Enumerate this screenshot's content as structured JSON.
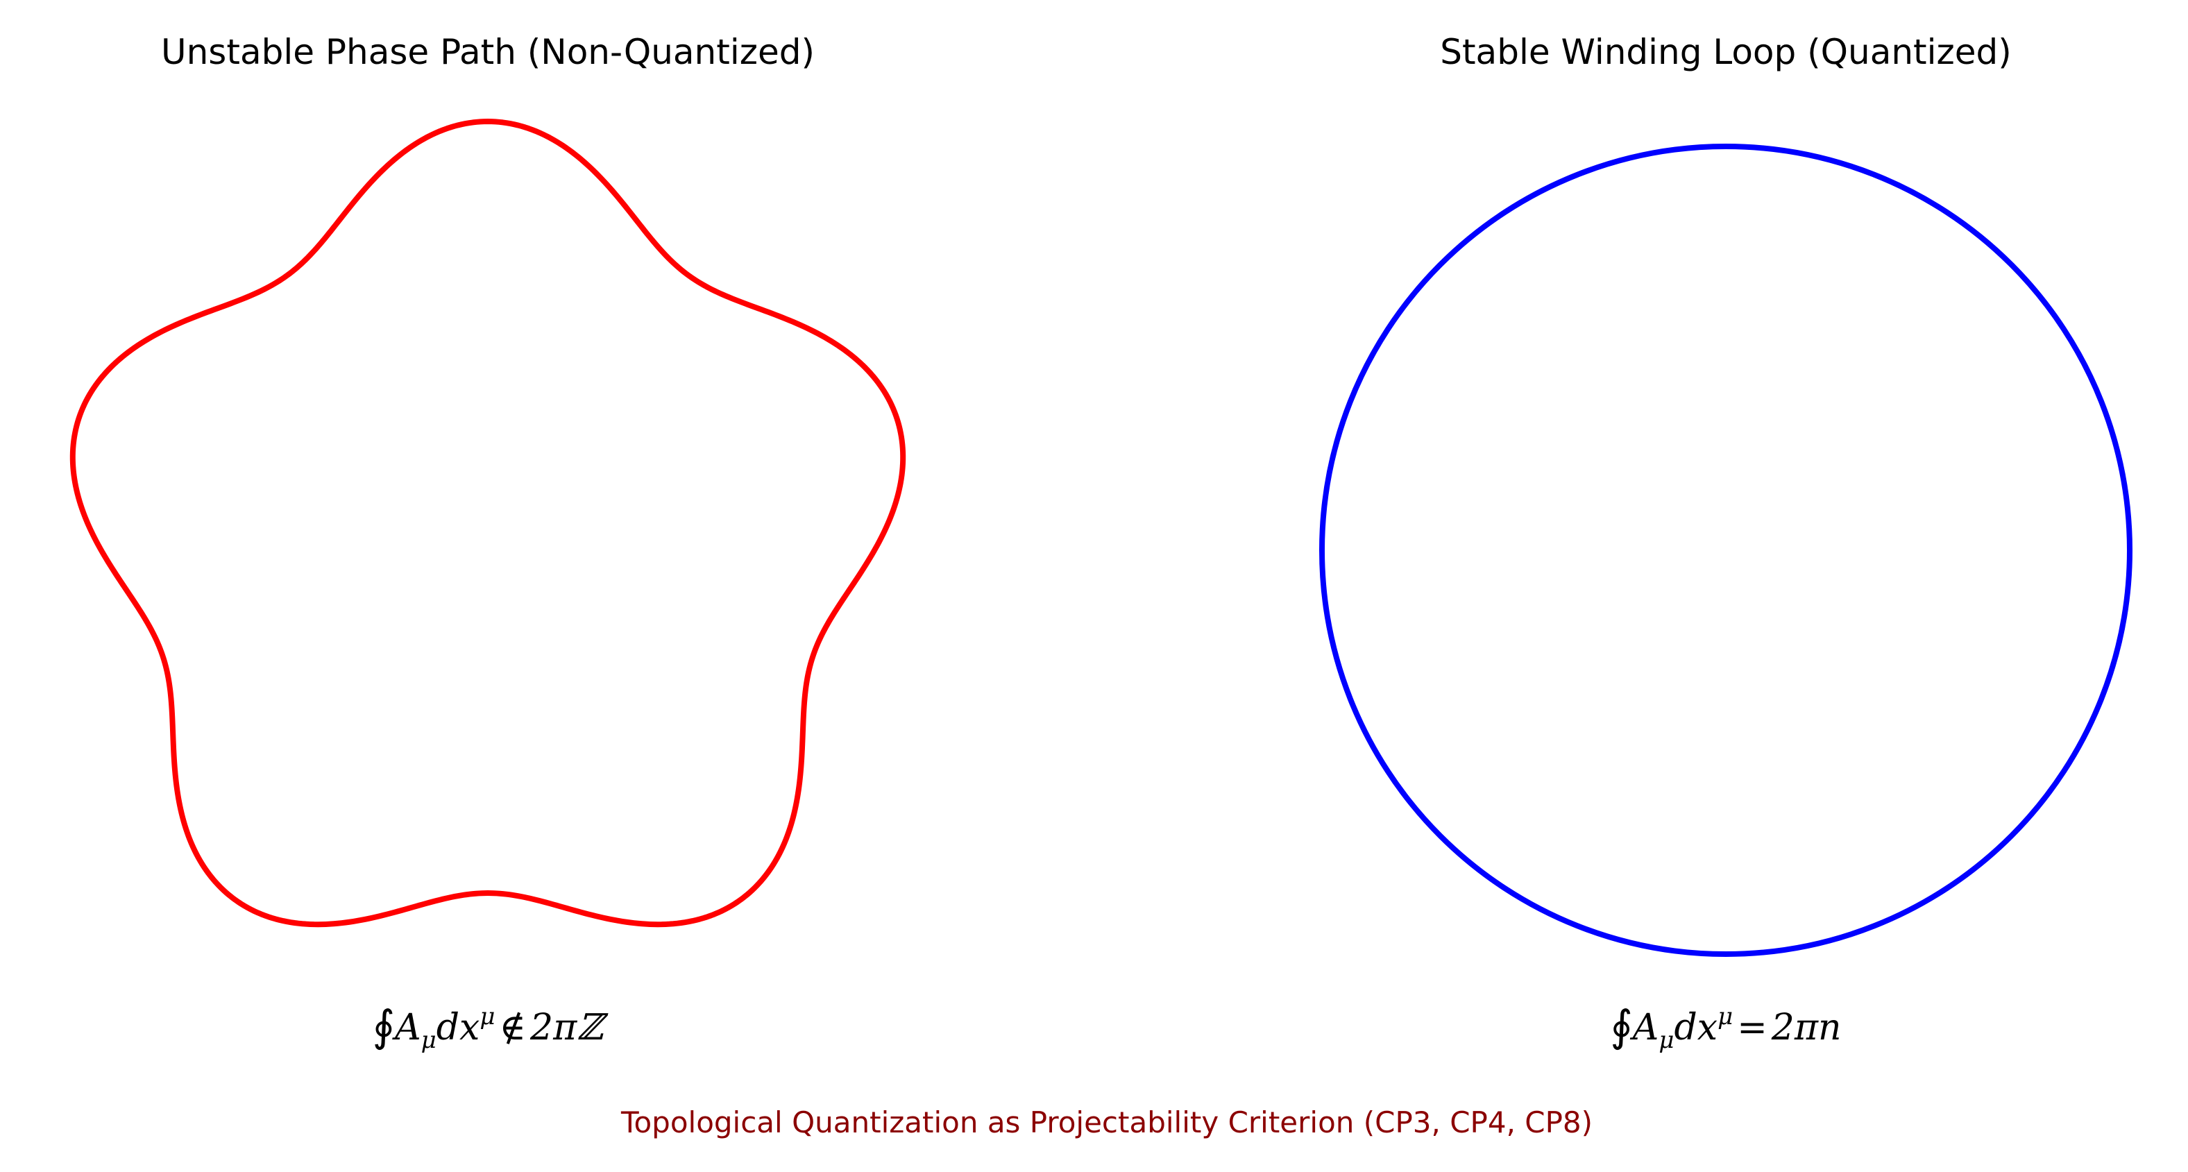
{
  "panels": {
    "left": {
      "title": "Unstable Phase Path (Non-Quantized)",
      "formula": {
        "integral": "∮",
        "field": "A",
        "field_sub": "μ",
        "diff": "dx",
        "diff_sup": "μ",
        "relation": "∉",
        "rhs": "2πℤ"
      },
      "curve": {
        "shape": "five-lobed perturbed loop",
        "lobes": 5,
        "color": "#ff0000"
      }
    },
    "right": {
      "title": "Stable Winding Loop (Quantized)",
      "formula": {
        "integral": "∮",
        "field": "A",
        "field_sub": "μ",
        "diff": "dx",
        "diff_sup": "μ",
        "relation": "=",
        "rhs": "2πn"
      },
      "curve": {
        "shape": "circle",
        "color": "#0000ff"
      }
    }
  },
  "caption": "Topological Quantization as Projectability Criterion (CP3, CP4, CP8)",
  "colors": {
    "caption": "#8b0000",
    "unstable": "#ff0000",
    "stable": "#0000ff"
  }
}
